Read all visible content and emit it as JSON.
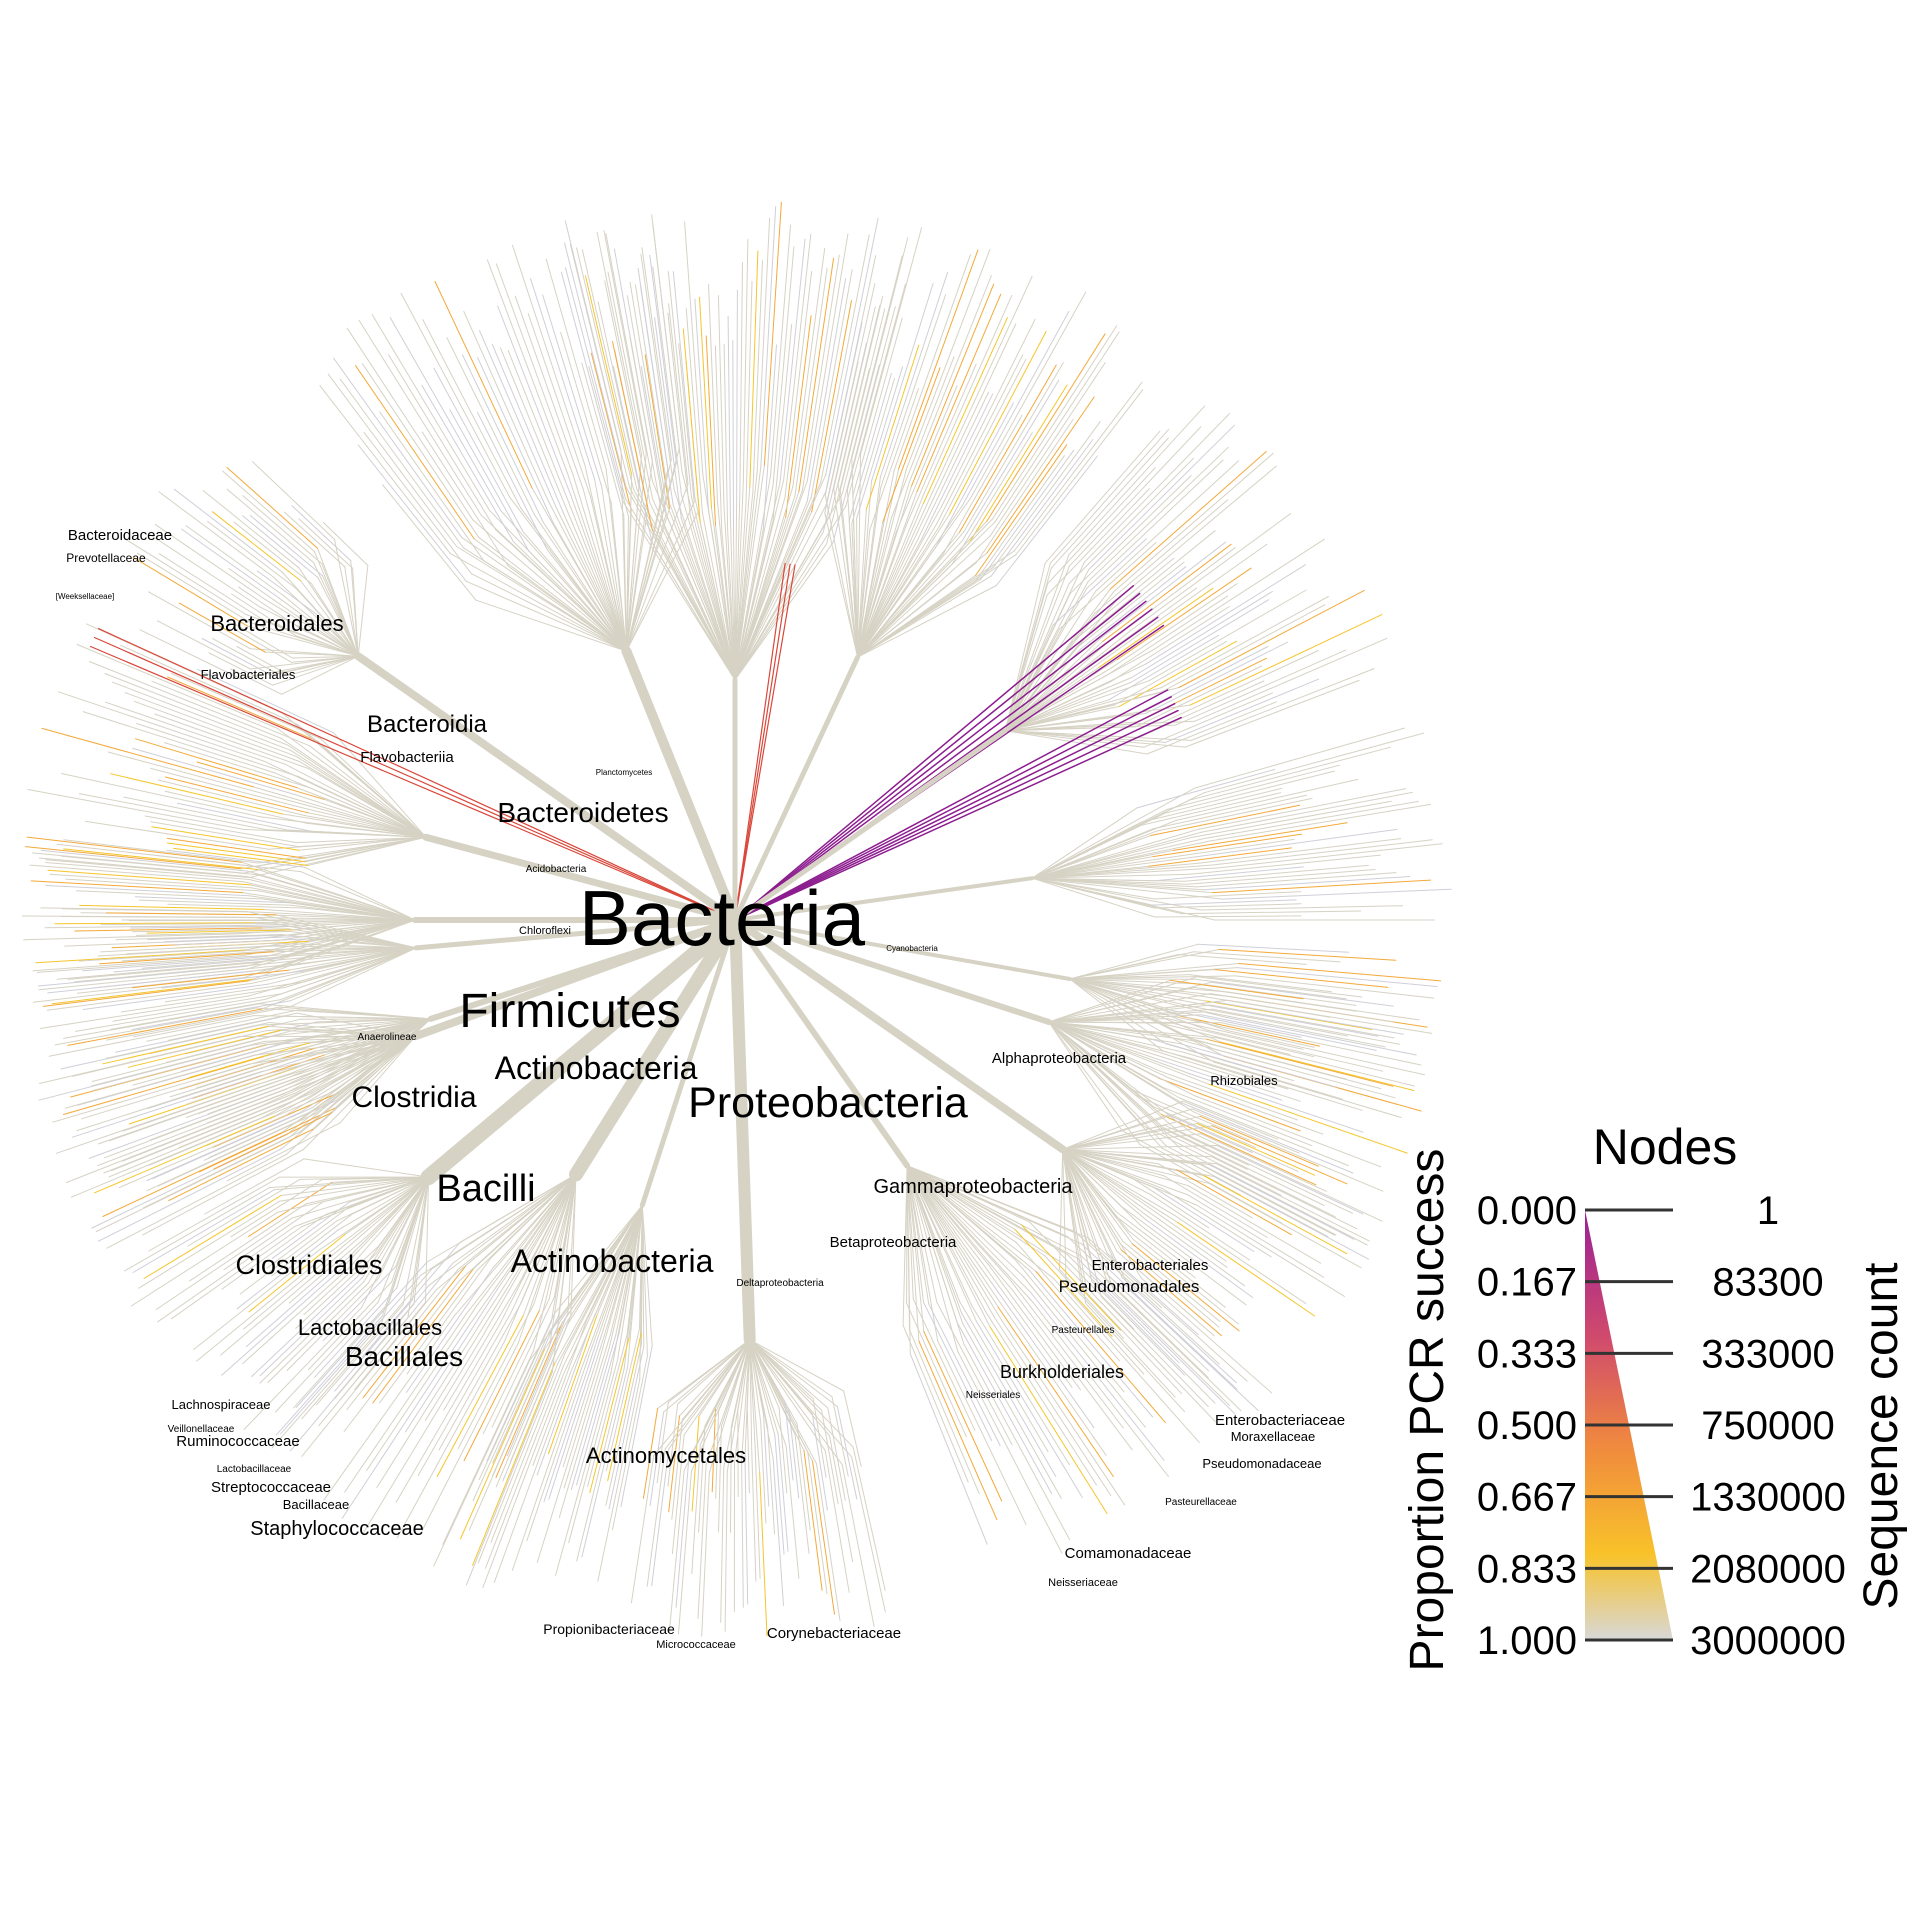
{
  "colors": {
    "edge_default": "#d6d2c4",
    "edge_light": "#cfcfd8",
    "orange": "#f3a93a",
    "yellow": "#f5c52a",
    "red": "#d9473a",
    "purple": "#8c1d8f",
    "gradient_top": "#9b1f96",
    "gradient_mid1": "#d14b6c",
    "gradient_mid2": "#f08a3e",
    "gradient_mid3": "#f8c22a",
    "gradient_bottom": "#d8d8d8"
  },
  "tree": {
    "root_label": "Bacteria",
    "labels": {
      "firmicutes": "Firmicutes",
      "proteobacteria": "Proteobacteria",
      "bacteroidetes": "Bacteroidetes",
      "actinobacteria_phylum": "Actinobacteria",
      "actinobacteria_class": "Actinobacteria",
      "bacilli": "Bacilli",
      "clostridia": "Clostridia",
      "bacteroidia": "Bacteroidia",
      "flavobacteriia": "Flavobacteriia",
      "bacteroidales": "Bacteroidales",
      "flavobacteriales": "Flavobacteriales",
      "bacteroidaceae": "Bacteroidaceae",
      "prevotellaceae": "Prevotellaceae",
      "weeksellaceae": "[Weeksellaceae]",
      "planctomycetes": "Planctomycetes",
      "acidobacteria": "Acidobacteria",
      "chloroflexi": "Chloroflexi",
      "cyanobacteria": "Cyanobacteria",
      "anaerolineae": "Anaerolineae",
      "clostridiales": "Clostridiales",
      "lactobacillales": "Lactobacillales",
      "bacillales": "Bacillales",
      "lachnospiraceae": "Lachnospiraceae",
      "veillonellaceae": "Veillonellaceae",
      "ruminococcaceae": "Ruminococcaceae",
      "lactobacillaceae": "Lactobacillaceae",
      "streptococcaceae": "Streptococcaceae",
      "bacillaceae": "Bacillaceae",
      "staphylococcaceae": "Staphylococcaceae",
      "actinomycetales": "Actinomycetales",
      "propionibacteriaceae": "Propionibacteriaceae",
      "micrococcaceae": "Micrococcaceae",
      "corynebacteriaceae": "Corynebacteriaceae",
      "deltaproteobacteria": "Deltaproteobacteria",
      "alphaproteobacteria": "Alphaproteobacteria",
      "rhizobiales": "Rhizobiales",
      "gammaproteobacteria": "Gammaproteobacteria",
      "betaproteobacteria": "Betaproteobacteria",
      "enterobacteriales": "Enterobacteriales",
      "pseudomonadales": "Pseudomonadales",
      "pasteurellales": "Pasteurellales",
      "burkholderiales": "Burkholderiales",
      "neisseriales": "Neisseriales",
      "enterobacteriaceae": "Enterobacteriaceae",
      "moraxellaceae": "Moraxellaceae",
      "pseudomonadaceae": "Pseudomonadaceae",
      "pasteurellaceae": "Pasteurellaceae",
      "comamonadaceae": "Comamonadaceae",
      "neisseriaceae": "Neisseriaceae"
    }
  },
  "legend": {
    "title": "Nodes",
    "left_axis_title": "Proportion PCR success",
    "right_axis_title": "Sequence count",
    "left_ticks": [
      "0.000",
      "0.167",
      "0.333",
      "0.500",
      "0.667",
      "0.833",
      "1.000"
    ],
    "right_ticks": [
      "1",
      "83300",
      "333000",
      "750000",
      "1330000",
      "2080000",
      "3000000"
    ]
  }
}
